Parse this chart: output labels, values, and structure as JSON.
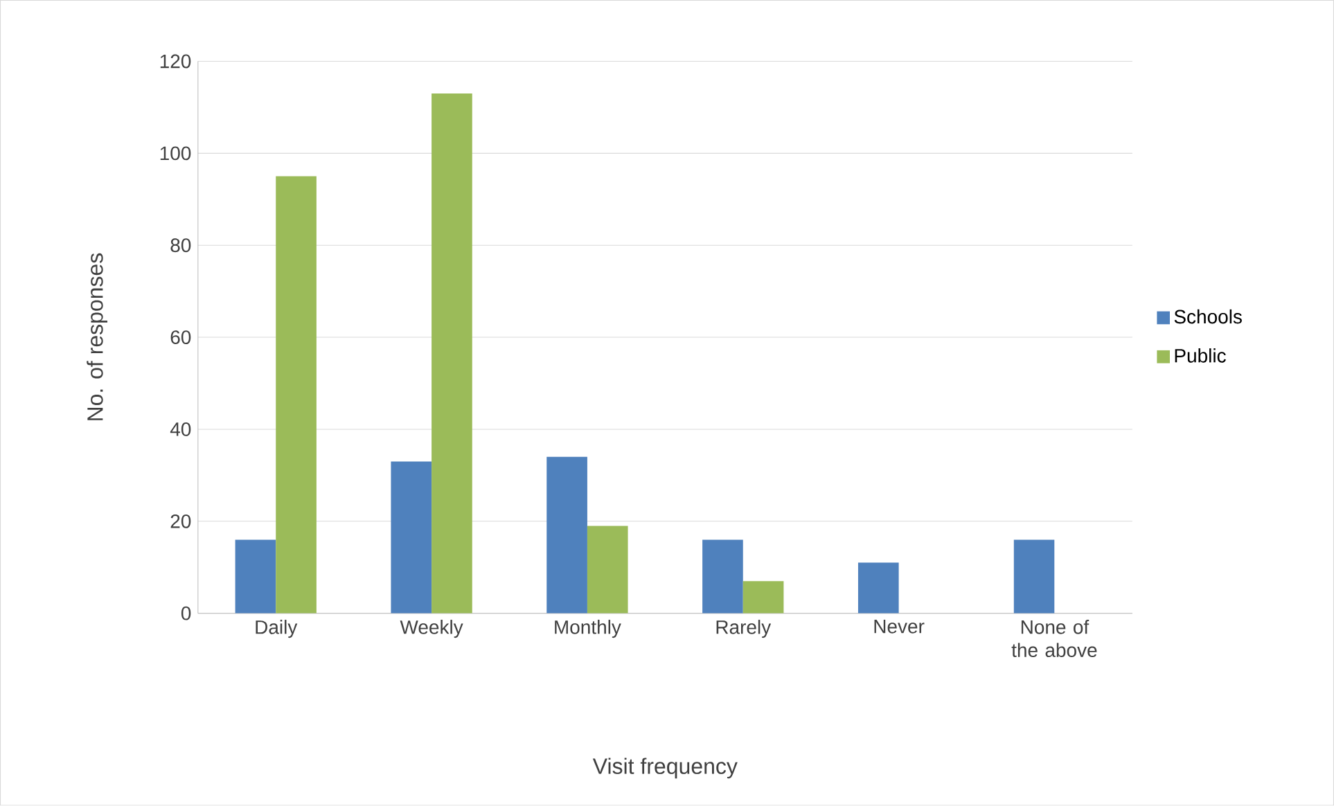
{
  "chart_data": {
    "type": "bar",
    "xlabel": "Visit frequency",
    "ylabel": "No. of responses",
    "categories": [
      "Daily",
      "Weekly",
      "Monthly",
      "Rarely",
      "Never",
      "None of the above"
    ],
    "series": [
      {
        "name": "Schools",
        "color": "#4f81bd",
        "values": [
          16,
          33,
          34,
          16,
          11,
          16
        ]
      },
      {
        "name": "Public",
        "color": "#9bbb59",
        "values": [
          95,
          113,
          19,
          7,
          0,
          0
        ]
      }
    ],
    "ylim": [
      0,
      120
    ],
    "yticks": [
      0,
      20,
      40,
      60,
      80,
      100,
      120
    ],
    "grid": "y",
    "legend": "right"
  }
}
